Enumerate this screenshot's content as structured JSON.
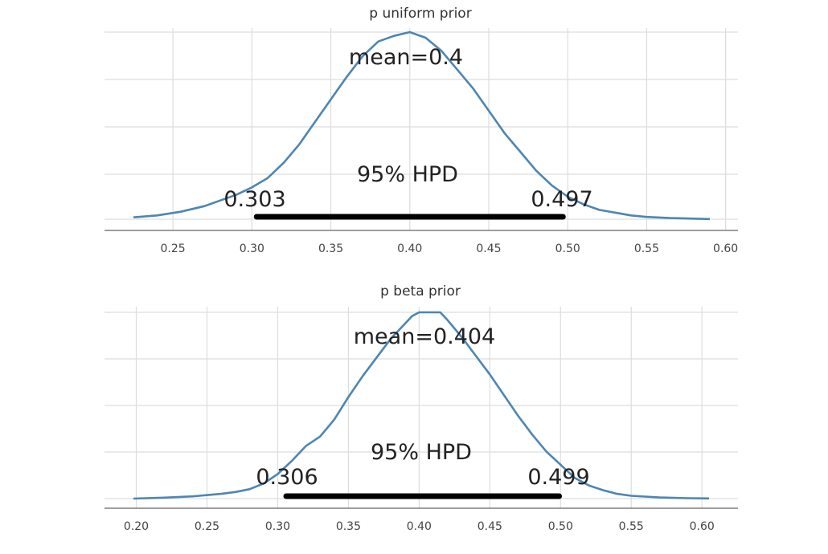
{
  "colors": {
    "curve": "#4c86b4",
    "hpd_bar": "#000000",
    "grid": "#dddddd"
  },
  "chart_data": [
    {
      "type": "line",
      "title": "p uniform prior",
      "xlabel": "",
      "ylabel": "",
      "xlim": [
        0.225,
        0.59
      ],
      "ticks": [
        "0.25",
        "0.30",
        "0.35",
        "0.40",
        "0.45",
        "0.50",
        "0.55",
        "0.60"
      ],
      "grid": true,
      "series": [
        {
          "x": [
            0.225,
            0.24,
            0.255,
            0.27,
            0.28,
            0.29,
            0.3,
            0.31,
            0.32,
            0.33,
            0.34,
            0.35,
            0.36,
            0.37,
            0.38,
            0.39,
            0.4,
            0.41,
            0.42,
            0.43,
            0.44,
            0.45,
            0.46,
            0.47,
            0.48,
            0.49,
            0.5,
            0.51,
            0.52,
            0.53,
            0.54,
            0.55,
            0.565,
            0.58,
            0.59
          ],
          "y": [
            0.01,
            0.02,
            0.04,
            0.07,
            0.1,
            0.13,
            0.17,
            0.22,
            0.3,
            0.4,
            0.52,
            0.64,
            0.76,
            0.87,
            0.95,
            0.98,
            1.0,
            0.97,
            0.9,
            0.8,
            0.7,
            0.58,
            0.46,
            0.36,
            0.26,
            0.18,
            0.12,
            0.08,
            0.05,
            0.035,
            0.02,
            0.012,
            0.006,
            0.003,
            0.001
          ]
        }
      ],
      "annotations": {
        "mean": "mean=0.4",
        "hpd_label": "95% HPD",
        "hpd_low": "0.303",
        "hpd_high": "0.497"
      },
      "hpd_interval": [
        0.303,
        0.497
      ]
    },
    {
      "type": "line",
      "title": "p beta prior",
      "xlabel": "",
      "ylabel": "",
      "xlim": [
        0.198,
        0.605
      ],
      "ticks": [
        "0.20",
        "0.25",
        "0.30",
        "0.35",
        "0.40",
        "0.45",
        "0.50",
        "0.55",
        "0.60"
      ],
      "grid": true,
      "series": [
        {
          "x": [
            0.198,
            0.22,
            0.24,
            0.26,
            0.27,
            0.28,
            0.29,
            0.3,
            0.31,
            0.32,
            0.33,
            0.34,
            0.35,
            0.36,
            0.37,
            0.38,
            0.39,
            0.395,
            0.4,
            0.41,
            0.415,
            0.42,
            0.43,
            0.44,
            0.45,
            0.46,
            0.47,
            0.48,
            0.49,
            0.5,
            0.51,
            0.52,
            0.53,
            0.54,
            0.55,
            0.57,
            0.59,
            0.605
          ],
          "y": [
            0.0,
            0.005,
            0.012,
            0.025,
            0.035,
            0.05,
            0.08,
            0.13,
            0.2,
            0.28,
            0.33,
            0.42,
            0.54,
            0.65,
            0.75,
            0.85,
            0.93,
            0.97,
            0.99,
            0.99,
            0.99,
            0.95,
            0.86,
            0.76,
            0.66,
            0.55,
            0.44,
            0.34,
            0.25,
            0.18,
            0.11,
            0.07,
            0.045,
            0.025,
            0.015,
            0.006,
            0.002,
            0.001
          ]
        }
      ],
      "annotations": {
        "mean": "mean=0.404",
        "hpd_label": "95% HPD",
        "hpd_low": "0.306",
        "hpd_high": "0.499"
      },
      "hpd_interval": [
        0.306,
        0.499
      ]
    }
  ]
}
